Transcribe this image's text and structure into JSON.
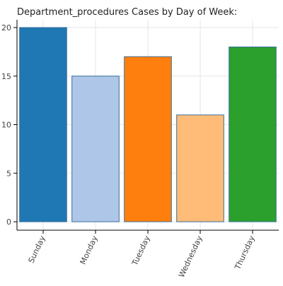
{
  "chart_data": {
    "type": "bar",
    "title": "Department_procedures Cases by Day of Week:",
    "xlabel": "",
    "ylabel": "",
    "categories": [
      "Sunday",
      "Monday",
      "Tuesday",
      "Wednesday",
      "Thursday"
    ],
    "values": [
      20,
      15,
      17,
      11,
      18
    ],
    "colors": [
      "#1f77b4",
      "#aec7e8",
      "#ff7f0e",
      "#ffbb78",
      "#2ca02c"
    ],
    "ylim": [
      0,
      20.8
    ],
    "yticks": [
      0,
      5,
      10,
      15,
      20
    ],
    "grid": true,
    "legend": "none"
  }
}
